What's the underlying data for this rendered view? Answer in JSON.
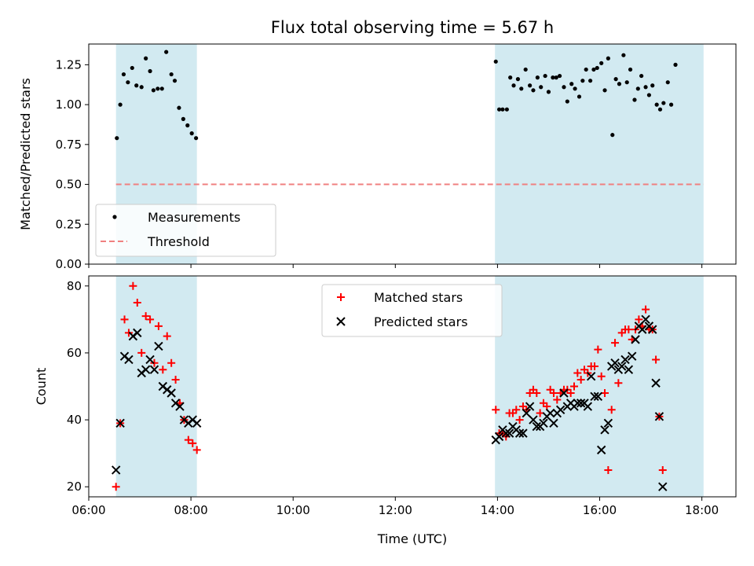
{
  "chart_data": [
    {
      "type": "scatter",
      "title": "Flux total observing time = 5.67 h",
      "xlabel": "",
      "ylabel": "Matched/Predicted stars",
      "xlim": [
        "06:00",
        "18:40"
      ],
      "ylim": [
        0,
        1.38
      ],
      "x_ticks": [
        "06:00",
        "08:00",
        "10:00",
        "12:00",
        "14:00",
        "16:00",
        "18:00"
      ],
      "y_ticks": [
        "0.00",
        "0.25",
        "0.50",
        "0.75",
        "1.00",
        "1.25"
      ],
      "grid": false,
      "legend_position": "lower-left",
      "shaded_intervals": [
        [
          "06:32",
          "08:07"
        ],
        [
          "13:57",
          "18:02"
        ]
      ],
      "shade_color": "#add8e6",
      "threshold": {
        "name": "Threshold",
        "value": 0.5,
        "color": "#f08080",
        "style": "dashed"
      },
      "series": [
        {
          "name": "Measurements",
          "color": "#000000",
          "marker": "dot",
          "points": [
            [
              "06:33",
              0.79
            ],
            [
              "06:37",
              1.0
            ],
            [
              "06:41",
              1.19
            ],
            [
              "06:46",
              1.14
            ],
            [
              "06:51",
              1.23
            ],
            [
              "06:56",
              1.12
            ],
            [
              "07:02",
              1.11
            ],
            [
              "07:07",
              1.29
            ],
            [
              "07:12",
              1.21
            ],
            [
              "07:16",
              1.09
            ],
            [
              "07:21",
              1.1
            ],
            [
              "07:26",
              1.1
            ],
            [
              "07:31",
              1.33
            ],
            [
              "07:37",
              1.19
            ],
            [
              "07:41",
              1.15
            ],
            [
              "07:46",
              0.98
            ],
            [
              "07:51",
              0.91
            ],
            [
              "07:56",
              0.87
            ],
            [
              "08:01",
              0.82
            ],
            [
              "08:06",
              0.79
            ],
            [
              "13:58",
              1.27
            ],
            [
              "14:02",
              0.97
            ],
            [
              "14:06",
              0.97
            ],
            [
              "14:11",
              0.97
            ],
            [
              "14:15",
              1.17
            ],
            [
              "14:19",
              1.12
            ],
            [
              "14:24",
              1.16
            ],
            [
              "14:28",
              1.1
            ],
            [
              "14:33",
              1.22
            ],
            [
              "14:38",
              1.12
            ],
            [
              "14:42",
              1.09
            ],
            [
              "14:47",
              1.17
            ],
            [
              "14:51",
              1.11
            ],
            [
              "14:56",
              1.18
            ],
            [
              "15:00",
              1.08
            ],
            [
              "15:05",
              1.17
            ],
            [
              "15:09",
              1.17
            ],
            [
              "15:13",
              1.18
            ],
            [
              "15:18",
              1.11
            ],
            [
              "15:22",
              1.02
            ],
            [
              "15:27",
              1.13
            ],
            [
              "15:31",
              1.1
            ],
            [
              "15:36",
              1.05
            ],
            [
              "15:40",
              1.15
            ],
            [
              "15:44",
              1.22
            ],
            [
              "15:49",
              1.15
            ],
            [
              "15:53",
              1.22
            ],
            [
              "15:57",
              1.23
            ],
            [
              "16:02",
              1.26
            ],
            [
              "16:06",
              1.09
            ],
            [
              "16:10",
              1.29
            ],
            [
              "16:15",
              0.81
            ],
            [
              "16:19",
              1.16
            ],
            [
              "16:23",
              1.13
            ],
            [
              "16:28",
              1.31
            ],
            [
              "16:32",
              1.14
            ],
            [
              "16:36",
              1.22
            ],
            [
              "16:41",
              1.03
            ],
            [
              "16:45",
              1.1
            ],
            [
              "16:49",
              1.18
            ],
            [
              "16:54",
              1.11
            ],
            [
              "16:58",
              1.06
            ],
            [
              "17:02",
              1.12
            ],
            [
              "17:07",
              1.0
            ],
            [
              "17:11",
              0.97
            ],
            [
              "17:15",
              1.01
            ],
            [
              "17:20",
              1.14
            ],
            [
              "17:24",
              1.0
            ],
            [
              "17:29",
              1.25
            ]
          ]
        }
      ]
    },
    {
      "type": "scatter",
      "title": "",
      "xlabel": "Time (UTC)",
      "ylabel": "Count",
      "xlim": [
        "06:00",
        "18:40"
      ],
      "ylim": [
        17,
        83
      ],
      "x_ticks": [
        "06:00",
        "08:00",
        "10:00",
        "12:00",
        "14:00",
        "16:00",
        "18:00"
      ],
      "y_ticks": [
        "20",
        "40",
        "60",
        "80"
      ],
      "grid": false,
      "legend_position": "upper-center",
      "shaded_intervals": [
        [
          "06:32",
          "08:07"
        ],
        [
          "13:57",
          "18:02"
        ]
      ],
      "shade_color": "#add8e6",
      "series": [
        {
          "name": "Matched stars",
          "color": "#ff0000",
          "marker": "plus",
          "points": [
            [
              "06:32",
              20
            ],
            [
              "06:37",
              39
            ],
            [
              "06:42",
              70
            ],
            [
              "06:47",
              66
            ],
            [
              "06:52",
              80
            ],
            [
              "06:57",
              75
            ],
            [
              "07:02",
              60
            ],
            [
              "07:07",
              71
            ],
            [
              "07:12",
              70
            ],
            [
              "07:17",
              57
            ],
            [
              "07:22",
              68
            ],
            [
              "07:27",
              55
            ],
            [
              "07:32",
              65
            ],
            [
              "07:37",
              57
            ],
            [
              "07:42",
              52
            ],
            [
              "07:47",
              45
            ],
            [
              "07:52",
              40
            ],
            [
              "07:57",
              34
            ],
            [
              "08:02",
              33
            ],
            [
              "08:07",
              31
            ],
            [
              "13:58",
              43
            ],
            [
              "14:02",
              36
            ],
            [
              "14:06",
              36
            ],
            [
              "14:10",
              35
            ],
            [
              "14:14",
              42
            ],
            [
              "14:18",
              42
            ],
            [
              "14:22",
              43
            ],
            [
              "14:26",
              40
            ],
            [
              "14:30",
              44
            ],
            [
              "14:34",
              43
            ],
            [
              "14:38",
              48
            ],
            [
              "14:42",
              49
            ],
            [
              "14:46",
              48
            ],
            [
              "14:50",
              42
            ],
            [
              "14:54",
              45
            ],
            [
              "14:58",
              44
            ],
            [
              "15:02",
              49
            ],
            [
              "15:06",
              48
            ],
            [
              "15:10",
              46
            ],
            [
              "15:14",
              48
            ],
            [
              "15:18",
              49
            ],
            [
              "15:22",
              49
            ],
            [
              "15:26",
              48
            ],
            [
              "15:30",
              50
            ],
            [
              "15:34",
              54
            ],
            [
              "15:38",
              52
            ],
            [
              "15:42",
              55
            ],
            [
              "15:46",
              54
            ],
            [
              "15:50",
              56
            ],
            [
              "15:54",
              56
            ],
            [
              "15:58",
              61
            ],
            [
              "16:02",
              53
            ],
            [
              "16:06",
              48
            ],
            [
              "16:10",
              25
            ],
            [
              "16:14",
              43
            ],
            [
              "16:18",
              63
            ],
            [
              "16:22",
              51
            ],
            [
              "16:26",
              66
            ],
            [
              "16:30",
              67
            ],
            [
              "16:34",
              67
            ],
            [
              "16:38",
              64
            ],
            [
              "16:42",
              67
            ],
            [
              "16:46",
              70
            ],
            [
              "16:50",
              68
            ],
            [
              "16:54",
              73
            ],
            [
              "16:58",
              67
            ],
            [
              "17:02",
              67
            ],
            [
              "17:06",
              58
            ],
            [
              "17:10",
              41
            ],
            [
              "17:14",
              25
            ]
          ]
        },
        {
          "name": "Predicted stars",
          "color": "#000000",
          "marker": "x",
          "points": [
            [
              "06:32",
              25
            ],
            [
              "06:37",
              39
            ],
            [
              "06:42",
              59
            ],
            [
              "06:47",
              58
            ],
            [
              "06:52",
              65
            ],
            [
              "06:57",
              66
            ],
            [
              "07:02",
              54
            ],
            [
              "07:07",
              55
            ],
            [
              "07:12",
              58
            ],
            [
              "07:17",
              55
            ],
            [
              "07:22",
              62
            ],
            [
              "07:27",
              50
            ],
            [
              "07:32",
              49
            ],
            [
              "07:37",
              48
            ],
            [
              "07:42",
              45
            ],
            [
              "07:47",
              44
            ],
            [
              "07:52",
              40
            ],
            [
              "07:57",
              39
            ],
            [
              "08:02",
              40
            ],
            [
              "08:07",
              39
            ],
            [
              "13:58",
              34
            ],
            [
              "14:02",
              35
            ],
            [
              "14:06",
              37
            ],
            [
              "14:10",
              36
            ],
            [
              "14:14",
              36
            ],
            [
              "14:18",
              38
            ],
            [
              "14:22",
              37
            ],
            [
              "14:26",
              36
            ],
            [
              "14:30",
              36
            ],
            [
              "14:34",
              42
            ],
            [
              "14:38",
              44
            ],
            [
              "14:42",
              40
            ],
            [
              "14:46",
              38
            ],
            [
              "14:50",
              38
            ],
            [
              "14:54",
              39
            ],
            [
              "14:58",
              41
            ],
            [
              "15:02",
              42
            ],
            [
              "15:06",
              39
            ],
            [
              "15:10",
              42
            ],
            [
              "15:14",
              43
            ],
            [
              "15:18",
              48
            ],
            [
              "15:22",
              44
            ],
            [
              "15:26",
              45
            ],
            [
              "15:30",
              44
            ],
            [
              "15:34",
              45
            ],
            [
              "15:38",
              45
            ],
            [
              "15:42",
              45
            ],
            [
              "15:46",
              44
            ],
            [
              "15:50",
              53
            ],
            [
              "15:54",
              47
            ],
            [
              "15:58",
              47
            ],
            [
              "16:02",
              31
            ],
            [
              "16:06",
              37
            ],
            [
              "16:10",
              39
            ],
            [
              "16:14",
              56
            ],
            [
              "16:18",
              57
            ],
            [
              "16:22",
              55
            ],
            [
              "16:26",
              56
            ],
            [
              "16:30",
              58
            ],
            [
              "16:34",
              55
            ],
            [
              "16:38",
              59
            ],
            [
              "16:42",
              64
            ],
            [
              "16:46",
              68
            ],
            [
              "16:50",
              67
            ],
            [
              "16:54",
              70
            ],
            [
              "16:58",
              68
            ],
            [
              "17:02",
              67
            ],
            [
              "17:06",
              51
            ],
            [
              "17:10",
              41
            ],
            [
              "17:14",
              20
            ]
          ]
        }
      ]
    }
  ]
}
